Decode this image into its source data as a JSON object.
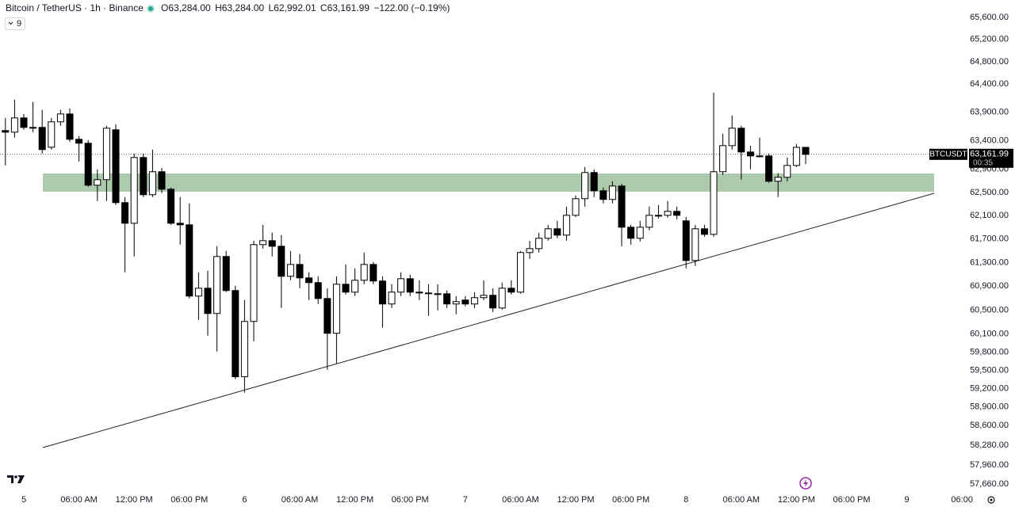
{
  "header": {
    "title": "Bitcoin / TetherUS · 1h · Binance",
    "ohlc": [
      {
        "key": "O",
        "value": "63,284.00"
      },
      {
        "key": "H",
        "value": "63,284.00"
      },
      {
        "key": "L",
        "value": "62,992.01"
      },
      {
        "key": "C",
        "value": "63,161.99"
      }
    ],
    "change": "−122.00 (−0.19%)",
    "indicators": "9"
  },
  "price_tag": {
    "symbol": "BTCUSDT",
    "price": "63,161.99",
    "countdown": "00:35"
  },
  "chart_data": {
    "type": "candlestick",
    "log_scale": true,
    "grid": false,
    "up_color": "#ffffff",
    "down_color": "#000000",
    "border_color": "#000000",
    "categories": [
      null,
      null,
      "5",
      null,
      null,
      null,
      null,
      null,
      "06:00 AM",
      null,
      null,
      null,
      null,
      null,
      "12:00 PM",
      null,
      null,
      null,
      null,
      null,
      "06:00 PM",
      null,
      null,
      null,
      null,
      null,
      "6",
      null,
      null,
      null,
      null,
      null,
      "06:00 AM",
      null,
      null,
      null,
      null,
      null,
      "12:00 PM",
      null,
      null,
      null,
      null,
      null,
      "06:00 PM",
      null,
      null,
      null,
      null,
      null,
      "7",
      null,
      null,
      null,
      null,
      null,
      "06:00 AM",
      null,
      null,
      null,
      null,
      null,
      "12:00 PM",
      null,
      null,
      null,
      null,
      null,
      "06:00 PM",
      null,
      null,
      null,
      null,
      null,
      "8",
      null,
      null,
      null,
      null,
      null,
      "06:00 AM",
      null,
      null,
      null,
      null,
      null,
      "12:00 PM",
      null,
      null,
      null,
      null,
      null,
      "06:00 PM",
      null,
      null,
      null,
      null,
      null,
      "9",
      null,
      null,
      null,
      null,
      null,
      "06:00"
    ],
    "open": [
      63578,
      63550,
      63801,
      63634,
      63634,
      63286,
      63732,
      63871,
      63425,
      63356,
      62625,
      62721,
      63592,
      62324,
      61970,
      63107,
      62461,
      62859,
      62556,
      61970,
      61943,
      60735,
      60867,
      60443,
      61403,
      60828,
      59395,
      60310,
      61605,
      61672,
      61577,
      61068,
      61268,
      61041,
      60961,
      60694,
      60113,
      60934,
      60801,
      61001,
      61268,
      60988,
      60602,
      60801,
      61027,
      60801,
      60787,
      60774,
      60774,
      60602,
      60668,
      60602,
      60708,
      60748,
      60535,
      60867,
      60801,
      61470,
      61537,
      61713,
      61875,
      61767,
      62106,
      62392,
      62845,
      62529,
      62379,
      62611,
      61902,
      61713,
      61902,
      62106,
      62106,
      62174,
      62011,
      61335,
      61875,
      61780,
      62859,
      63314,
      63620,
      63203,
      63134,
      63134,
      62694,
      62762,
      62968,
      63284,
      null,
      null,
      null,
      null,
      null,
      null,
      null,
      null,
      null,
      null,
      null,
      null,
      null,
      null,
      null,
      null,
      null
    ],
    "high": [
      63801,
      64123,
      63871,
      64082,
      63942,
      63801,
      63942,
      63969,
      63481,
      63411,
      62900,
      63662,
      63690,
      62419,
      63176,
      63176,
      63245,
      62927,
      62584,
      62419,
      62310,
      61135,
      61162,
      61577,
      61497,
      60908,
      60668,
      61672,
      61943,
      61808,
      61767,
      61497,
      61443,
      61135,
      61068,
      60867,
      61068,
      61268,
      61201,
      61470,
      61309,
      61068,
      60934,
      61135,
      61094,
      61001,
      60934,
      60934,
      60828,
      60735,
      60735,
      60801,
      61001,
      60867,
      60961,
      61001,
      61497,
      61672,
      61808,
      61943,
      62011,
      62256,
      62447,
      62941,
      62900,
      62584,
      62694,
      62652,
      61943,
      62011,
      62256,
      62283,
      62351,
      62256,
      62078,
      61943,
      61943,
      64250,
      63523,
      63844,
      63662,
      63314,
      63453,
      63176,
      62831,
      63107,
      63342,
      63284,
      null,
      null,
      null,
      null,
      null,
      null,
      null,
      null,
      null,
      null,
      null,
      null,
      null,
      null,
      null,
      null,
      null
    ],
    "low": [
      62968,
      63453,
      63592,
      63550,
      63176,
      63245,
      63662,
      63383,
      63038,
      62598,
      62351,
      62351,
      62283,
      61135,
      61403,
      62419,
      62419,
      62488,
      61943,
      61605,
      60694,
      60337,
      60073,
      59812,
      60801,
      59355,
      59135,
      59981,
      61537,
      61403,
      60535,
      61001,
      60867,
      60668,
      60602,
      59511,
      59616,
      60761,
      60735,
      60934,
      60934,
      60206,
      60535,
      60735,
      60735,
      60668,
      60403,
      60496,
      60535,
      60430,
      60562,
      60535,
      60668,
      60469,
      60509,
      60761,
      60774,
      61362,
      61470,
      61672,
      61713,
      61672,
      62078,
      62256,
      62419,
      62310,
      62310,
      61577,
      61605,
      61658,
      61848,
      62052,
      62065,
      62038,
      61201,
      61242,
      61739,
      61739,
      62803,
      63245,
      62721,
      62900,
      63107,
      62666,
      62419,
      62694,
      62941,
      62992.01,
      null,
      null,
      null,
      null,
      null,
      null,
      null,
      null,
      null,
      null,
      null,
      null,
      null,
      null,
      null,
      null,
      null
    ],
    "close": [
      63550,
      63801,
      63634,
      63620,
      63245,
      63732,
      63871,
      63425,
      63356,
      62625,
      62721,
      63620,
      62324,
      61970,
      63107,
      62461,
      62859,
      62556,
      61970,
      61943,
      60735,
      60867,
      60443,
      61403,
      60828,
      59395,
      60310,
      61605,
      61672,
      61577,
      61068,
      61268,
      61041,
      60961,
      60694,
      60113,
      60934,
      60801,
      61001,
      61268,
      60988,
      60602,
      60801,
      61027,
      60801,
      60787,
      60774,
      60761,
      60602,
      60641,
      60602,
      60708,
      60748,
      60535,
      60867,
      60801,
      61470,
      61537,
      61713,
      61875,
      61767,
      62106,
      62392,
      62845,
      62529,
      62379,
      62611,
      61902,
      61713,
      61902,
      62106,
      62106,
      62174,
      62106,
      61335,
      61875,
      61780,
      62859,
      63314,
      63620,
      63203,
      63134,
      63134,
      62694,
      62762,
      62968,
      63284,
      63161.99,
      null,
      null,
      null,
      null,
      null,
      null,
      null,
      null,
      null,
      null,
      null,
      null,
      null,
      null,
      null,
      null,
      null
    ],
    "ylim": [
      57546,
      65915
    ],
    "yticks": [
      {
        "value": 65600,
        "label": "65,600.00"
      },
      {
        "value": 65200,
        "label": "65,200.00"
      },
      {
        "value": 64800,
        "label": "64,800.00"
      },
      {
        "value": 64400,
        "label": "64,400.00"
      },
      {
        "value": 63900,
        "label": "63,900.00"
      },
      {
        "value": 63400,
        "label": "63,400.00"
      },
      {
        "value": 62900,
        "label": "62,900.00"
      },
      {
        "value": 62500,
        "label": "62,500.00"
      },
      {
        "value": 62100,
        "label": "62,100.00"
      },
      {
        "value": 61700,
        "label": "61,700.00"
      },
      {
        "value": 61300,
        "label": "61,300.00"
      },
      {
        "value": 60900,
        "label": "60,900.00"
      },
      {
        "value": 60500,
        "label": "60,500.00"
      },
      {
        "value": 60100,
        "label": "60,100.00"
      },
      {
        "value": 59800,
        "label": "59,800.00"
      },
      {
        "value": 59500,
        "label": "59,500.00"
      },
      {
        "value": 59200,
        "label": "59,200.00"
      },
      {
        "value": 58900,
        "label": "58,900.00"
      },
      {
        "value": 58600,
        "label": "58,600.00"
      },
      {
        "value": 58280,
        "label": "58,280.00"
      },
      {
        "value": 57960,
        "label": "57,960.00"
      },
      {
        "value": 57660,
        "label": "57,660.00"
      }
    ]
  }
}
